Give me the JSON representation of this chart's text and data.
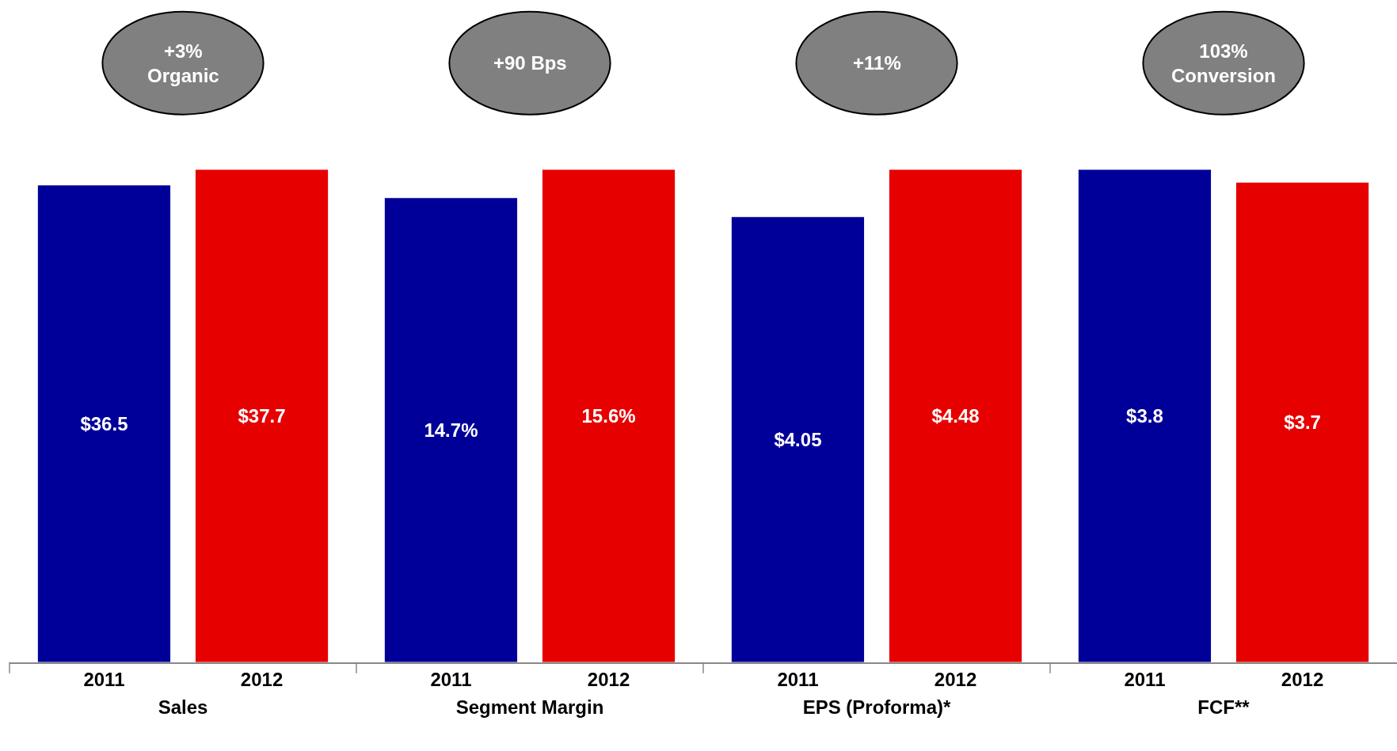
{
  "chart_data": [
    {
      "type": "bar",
      "xlabel": "Sales",
      "categories": [
        "2011",
        "2012"
      ],
      "values": [
        36.5,
        37.7
      ],
      "value_labels": [
        "$36.5",
        "$37.7"
      ],
      "colors": [
        "#000099",
        "#e60000"
      ],
      "annotations": [
        "+3%\nOrganic"
      ],
      "tick_labels": "x"
    },
    {
      "type": "bar",
      "xlabel": "Segment Margin",
      "categories": [
        "2011",
        "2012"
      ],
      "values": [
        14.7,
        15.6
      ],
      "value_labels": [
        "14.7%",
        "15.6%"
      ],
      "colors": [
        "#000099",
        "#e60000"
      ],
      "annotations": [
        "+90 Bps"
      ],
      "tick_labels": "x"
    },
    {
      "type": "bar",
      "xlabel": "EPS (Proforma)*",
      "categories": [
        "2011",
        "2012"
      ],
      "values": [
        4.05,
        4.48
      ],
      "value_labels": [
        "$4.05",
        "$4.48"
      ],
      "colors": [
        "#000099",
        "#e60000"
      ],
      "annotations": [
        "+11%"
      ],
      "tick_labels": "x"
    },
    {
      "type": "bar",
      "xlabel": "FCF**",
      "categories": [
        "2011",
        "2012"
      ],
      "values": [
        3.8,
        3.7
      ],
      "value_labels": [
        "$3.8",
        "$3.7"
      ],
      "colors": [
        "#000099",
        "#e60000"
      ],
      "annotations": [
        "103%\nConversion"
      ],
      "tick_labels": "x"
    }
  ]
}
